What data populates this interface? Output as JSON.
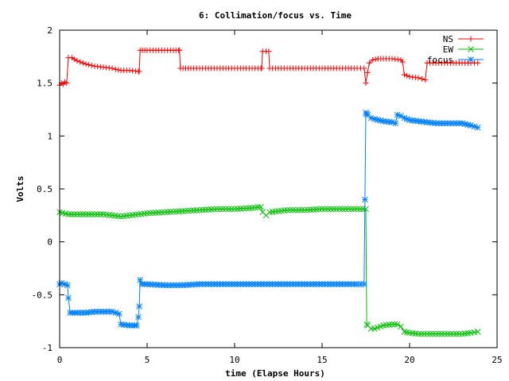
{
  "chart_data": {
    "type": "line",
    "title": "6: Collimation/focus vs. Time",
    "xlabel": "time (Elapse Hours)",
    "ylabel": "Volts",
    "xlim": [
      0,
      25
    ],
    "ylim": [
      -1,
      2
    ],
    "xticks": [
      0,
      5,
      10,
      15,
      20,
      25
    ],
    "xtick_labels": [
      "0",
      "5",
      "10",
      "15",
      "20",
      "25"
    ],
    "yticks": [
      -1,
      -0.5,
      0,
      0.5,
      1,
      1.5,
      2
    ],
    "ytick_labels": [
      "-1",
      "-0.5",
      "0",
      "0.5",
      "1",
      "1.5",
      "2"
    ],
    "grid": false,
    "legend_position": "top-right",
    "series": [
      {
        "name": "NS",
        "color": "#ff0000",
        "marker": "plus",
        "x": [
          0,
          0.1,
          0.2,
          0.3,
          0.4,
          0.5,
          0.7,
          1.0,
          1.5,
          2.0,
          2.5,
          3.0,
          3.2,
          3.5,
          4.0,
          4.5,
          4.55,
          4.6,
          5.0,
          5.5,
          6.0,
          6.5,
          6.8,
          6.85,
          6.9,
          7.5,
          8.0,
          9.0,
          10.0,
          11.0,
          11.5,
          11.55,
          11.6,
          11.8,
          11.95,
          12.0,
          12.5,
          13.0,
          14.0,
          15.0,
          16.0,
          17.0,
          17.4,
          17.5,
          17.6,
          17.7,
          17.9,
          18.2,
          18.5,
          19.0,
          19.5,
          19.6,
          19.7,
          20.0,
          20.5,
          20.9,
          21.0,
          21.5,
          22.0,
          22.5,
          23.0,
          23.5,
          23.9
        ],
        "y": [
          1.48,
          1.5,
          1.49,
          1.51,
          1.5,
          1.74,
          1.74,
          1.71,
          1.68,
          1.66,
          1.65,
          1.64,
          1.63,
          1.62,
          1.62,
          1.61,
          1.61,
          1.81,
          1.81,
          1.81,
          1.81,
          1.81,
          1.81,
          1.81,
          1.64,
          1.64,
          1.64,
          1.64,
          1.64,
          1.64,
          1.64,
          1.64,
          1.8,
          1.8,
          1.8,
          1.64,
          1.64,
          1.64,
          1.64,
          1.64,
          1.64,
          1.64,
          1.64,
          1.5,
          1.6,
          1.69,
          1.72,
          1.73,
          1.73,
          1.73,
          1.72,
          1.7,
          1.58,
          1.56,
          1.55,
          1.53,
          1.69,
          1.69,
          1.69,
          1.69,
          1.69,
          1.69,
          1.69
        ]
      },
      {
        "name": "EW",
        "color": "#00c000",
        "marker": "cross",
        "x": [
          0,
          0.5,
          1.0,
          1.5,
          2.0,
          2.5,
          3.0,
          3.5,
          4.0,
          4.5,
          5.0,
          6.0,
          7.0,
          8.0,
          9.0,
          10.0,
          11.0,
          11.5,
          11.6,
          11.8,
          12.0,
          12.5,
          13.0,
          14.0,
          15.0,
          16.0,
          17.0,
          17.5,
          17.55,
          17.6,
          17.8,
          18.0,
          18.5,
          19.0,
          19.3,
          19.5,
          19.7,
          20.0,
          20.5,
          21.0,
          21.5,
          22.0,
          22.5,
          23.0,
          23.5,
          23.9
        ],
        "y": [
          0.28,
          0.26,
          0.26,
          0.26,
          0.26,
          0.26,
          0.25,
          0.24,
          0.25,
          0.26,
          0.27,
          0.28,
          0.29,
          0.3,
          0.31,
          0.31,
          0.32,
          0.33,
          0.28,
          0.25,
          0.28,
          0.29,
          0.3,
          0.3,
          0.31,
          0.31,
          0.31,
          0.31,
          -0.78,
          -0.79,
          -0.82,
          -0.82,
          -0.79,
          -0.78,
          -0.78,
          -0.8,
          -0.85,
          -0.86,
          -0.87,
          -0.87,
          -0.87,
          -0.87,
          -0.87,
          -0.87,
          -0.86,
          -0.85
        ]
      },
      {
        "name": "focus",
        "color": "#0080ff",
        "marker": "star",
        "x": [
          0,
          0.1,
          0.3,
          0.45,
          0.5,
          0.6,
          1.0,
          1.5,
          2.0,
          2.5,
          3.0,
          3.4,
          3.5,
          4.0,
          4.3,
          4.4,
          4.5,
          4.55,
          4.6,
          4.7,
          5.0,
          6.0,
          7.0,
          8.0,
          9.0,
          10.0,
          11.0,
          12.0,
          13.0,
          14.0,
          15.0,
          16.0,
          17.0,
          17.4,
          17.45,
          17.5,
          17.55,
          17.6,
          17.8,
          18.0,
          18.5,
          19.0,
          19.2,
          19.3,
          19.5,
          19.7,
          20.0,
          20.5,
          21.0,
          21.5,
          22.0,
          22.5,
          23.0,
          23.5,
          23.9
        ],
        "y": [
          -0.4,
          -0.39,
          -0.4,
          -0.41,
          -0.53,
          -0.67,
          -0.67,
          -0.67,
          -0.66,
          -0.66,
          -0.66,
          -0.68,
          -0.78,
          -0.79,
          -0.79,
          -0.79,
          -0.71,
          -0.61,
          -0.36,
          -0.4,
          -0.4,
          -0.41,
          -0.41,
          -0.4,
          -0.4,
          -0.4,
          -0.4,
          -0.4,
          -0.4,
          -0.4,
          -0.4,
          -0.4,
          -0.4,
          -0.4,
          0.4,
          1.22,
          1.21,
          1.2,
          1.17,
          1.16,
          1.14,
          1.13,
          1.12,
          1.2,
          1.19,
          1.17,
          1.15,
          1.14,
          1.13,
          1.12,
          1.12,
          1.12,
          1.12,
          1.1,
          1.08
        ]
      }
    ]
  }
}
